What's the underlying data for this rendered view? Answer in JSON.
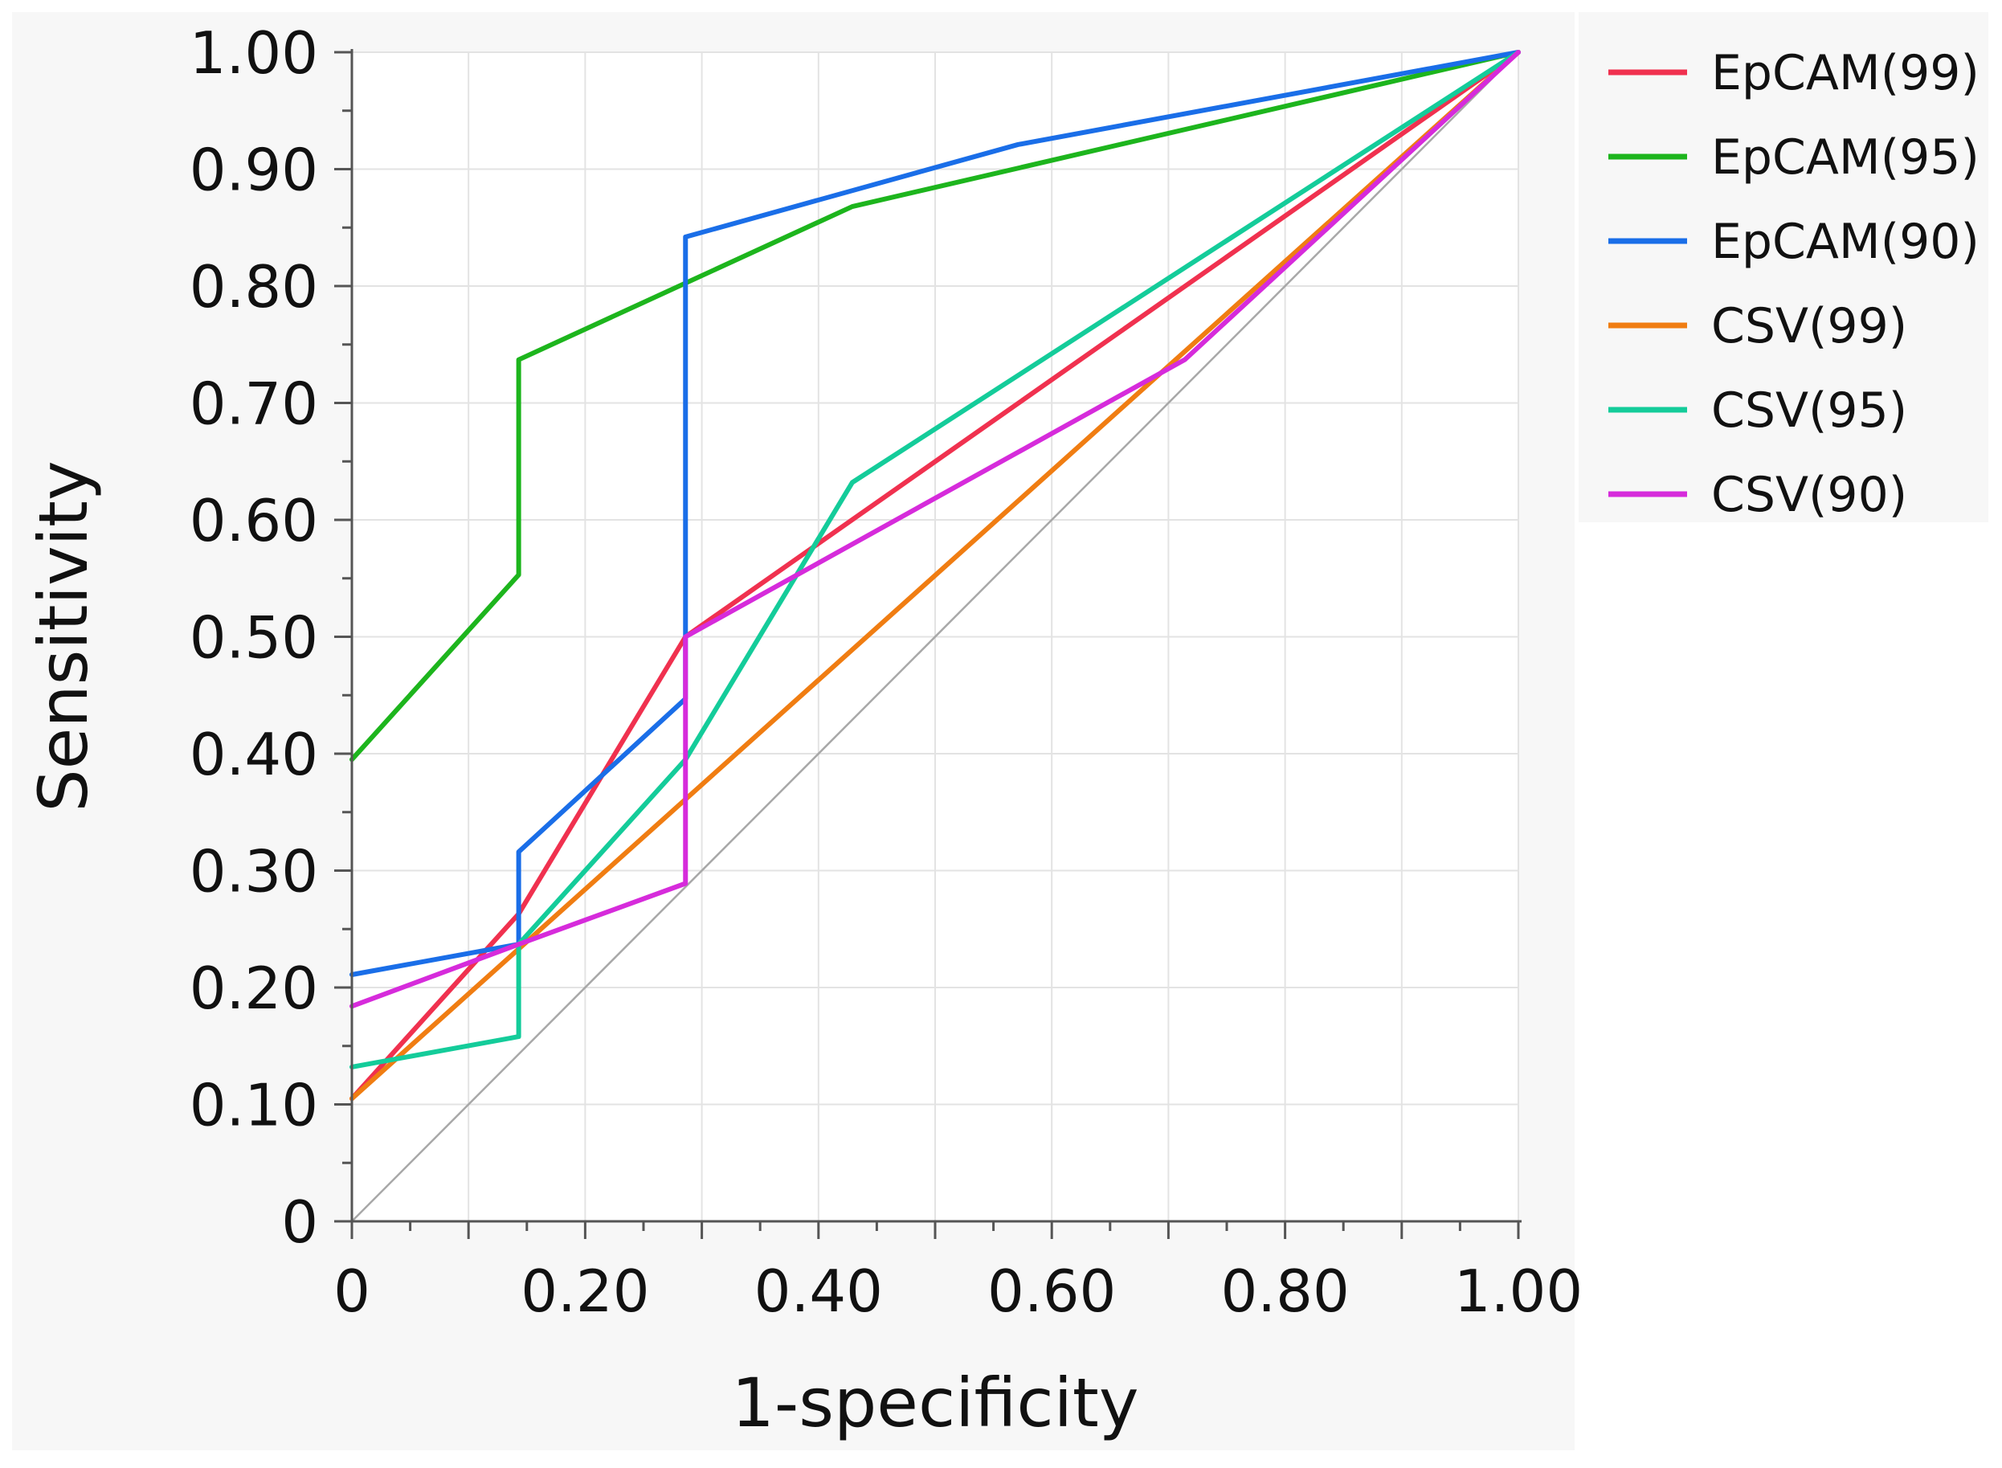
{
  "chart_data": {
    "type": "line",
    "title": "",
    "xlabel": "1-specificity",
    "ylabel": "Sensitivity",
    "xlim": [
      0,
      1
    ],
    "ylim": [
      0,
      1
    ],
    "x_ticks": [
      0,
      0.2,
      0.4,
      0.6,
      0.8,
      1.0
    ],
    "x_tick_labels": [
      "0",
      "0.20",
      "0.40",
      "0.60",
      "0.80",
      "1.00"
    ],
    "y_ticks": [
      0,
      0.1,
      0.2,
      0.3,
      0.4,
      0.5,
      0.6,
      0.7,
      0.8,
      0.9,
      1.0
    ],
    "y_tick_labels": [
      "0",
      "0.10",
      "0.20",
      "0.30",
      "0.40",
      "0.50",
      "0.60",
      "0.70",
      "0.80",
      "0.90",
      "1.00"
    ],
    "grid": true,
    "legend_position": "right",
    "reference_line": {
      "x": [
        0,
        1
      ],
      "y": [
        0,
        1
      ],
      "color": "#a8a8a8"
    },
    "series": [
      {
        "name": "EpCAM(99)",
        "color": "#f0314f",
        "x": [
          0,
          0.143,
          0.286,
          1.0
        ],
        "y": [
          0.105,
          0.263,
          0.5,
          1.0
        ]
      },
      {
        "name": "EpCAM(95)",
        "color": "#1db51d",
        "x": [
          0,
          0.143,
          0.143,
          0.429,
          1.0
        ],
        "y": [
          0.395,
          0.553,
          0.737,
          0.868,
          1.0
        ]
      },
      {
        "name": "EpCAM(90)",
        "color": "#1a6ee8",
        "x": [
          0,
          0.143,
          0.143,
          0.286,
          0.286,
          0.571,
          1.0
        ],
        "y": [
          0.211,
          0.237,
          0.316,
          0.447,
          0.842,
          0.921,
          1.0
        ]
      },
      {
        "name": "CSV(99)",
        "color": "#f07d12",
        "x": [
          0,
          1.0
        ],
        "y": [
          0.105,
          1.0
        ]
      },
      {
        "name": "CSV(95)",
        "color": "#14cc9a",
        "x": [
          0,
          0.143,
          0.143,
          0.286,
          0.429,
          1.0
        ],
        "y": [
          0.132,
          0.158,
          0.237,
          0.395,
          0.632,
          1.0
        ]
      },
      {
        "name": "CSV(90)",
        "color": "#d62bdb",
        "x": [
          0,
          0.143,
          0.286,
          0.286,
          0.714,
          1.0
        ],
        "y": [
          0.184,
          0.237,
          0.289,
          0.5,
          0.737,
          1.0
        ]
      }
    ]
  }
}
